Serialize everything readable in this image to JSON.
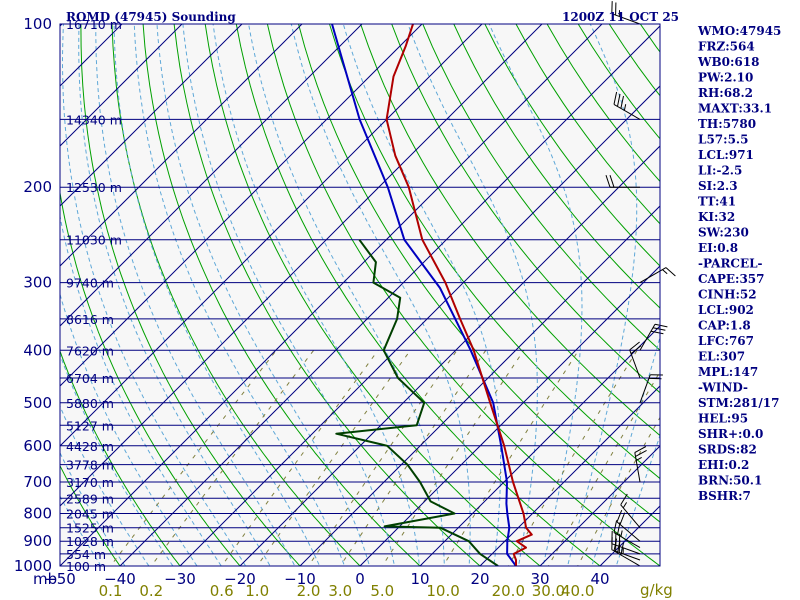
{
  "header": {
    "station": "ROMD (47945) Sounding",
    "time": "1200Z 11 OCT 25"
  },
  "indices": [
    "WMO:47945",
    "FRZ:564",
    "WB0:618",
    "PW:2.10",
    "RH:68.2",
    "MAXT:33.1",
    "TH:5780",
    "L57:5.5",
    "LCL:971",
    "LI:-2.5",
    "SI:2.3",
    "TT:41",
    "KI:32",
    "SW:230",
    "EI:0.8",
    "-PARCEL-",
    "CAPE:357",
    "CINH:52",
    "LCL:902",
    "CAP:1.8",
    "LFC:767",
    "EL:307",
    "MPL:147",
    "-WIND-",
    "STM:281/17",
    "HEL:95",
    "SHR+:0.0",
    "SRDS:82",
    "EHI:0.2",
    "BRN:50.1",
    "BSHR:7"
  ],
  "colors": {
    "axis": "#000080",
    "isotherm": "#000080",
    "dry_adiabat": "#00a000",
    "moist_adiabat": "#5fa8d8",
    "mixing_ratio": "#808040",
    "temperature": "#b00000",
    "dewpoint": "#004000",
    "parcel": "#0000c0",
    "wind": "#000000",
    "background": "#f7f7f7"
  },
  "chart_data": {
    "type": "skew-t",
    "title": "ROMD (47945) Sounding",
    "valid_time": "1200Z 11 OCT 25",
    "pressure_unit": "mb",
    "mixing_ratio_unit": "g/kg",
    "temperature_unit": "°C",
    "p_range": [
      1000,
      100
    ],
    "t_range_bottom": [
      -50,
      50
    ],
    "pressure_ticks": [
      "100",
      "200",
      "300",
      "400",
      "500",
      "600",
      "700",
      "800",
      "900",
      "1000"
    ],
    "temperature_ticks": [
      "-50",
      "-40",
      "-30",
      "-20",
      "-10",
      "0",
      "10",
      "20",
      "30",
      "40"
    ],
    "mixing_ratio_ticks": [
      {
        "w": 0.1,
        "label": "0.1"
      },
      {
        "w": 0.2,
        "label": "0.2"
      },
      {
        "w": 0.6,
        "label": "0.6"
      },
      {
        "w": 1.0,
        "label": "1.0"
      },
      {
        "w": 2.0,
        "label": "2.0"
      },
      {
        "w": 3.0,
        "label": "3.0"
      },
      {
        "w": 5.0,
        "label": "5.0"
      },
      {
        "w": 10.0,
        "label": "10.0"
      },
      {
        "w": 20.0,
        "label": "20.0"
      },
      {
        "w": 30.0,
        "label": "30.0"
      },
      {
        "w": 40.0,
        "label": "40.0"
      }
    ],
    "heights": [
      {
        "p": 100,
        "label": "16710 m"
      },
      {
        "p": 150,
        "label": "14340 m"
      },
      {
        "p": 200,
        "label": "12530 m"
      },
      {
        "p": 250,
        "label": "11030 m"
      },
      {
        "p": 300,
        "label": "9740 m"
      },
      {
        "p": 350,
        "label": "8616 m"
      },
      {
        "p": 400,
        "label": "7620 m"
      },
      {
        "p": 450,
        "label": "6704 m"
      },
      {
        "p": 500,
        "label": "5880 m"
      },
      {
        "p": 550,
        "label": "5127 m"
      },
      {
        "p": 600,
        "label": "4428 m"
      },
      {
        "p": 650,
        "label": "3778 m"
      },
      {
        "p": 700,
        "label": "3170 m"
      },
      {
        "p": 750,
        "label": "2589 m"
      },
      {
        "p": 800,
        "label": "2045 m"
      },
      {
        "p": 850,
        "label": "1525 m"
      },
      {
        "p": 900,
        "label": "1028 m"
      },
      {
        "p": 950,
        "label": "554 m"
      },
      {
        "p": 1000,
        "label": "100 m"
      }
    ],
    "temperature": [
      [
        1000,
        26.0
      ],
      [
        975,
        25.0
      ],
      [
        950,
        23.6
      ],
      [
        925,
        24.6
      ],
      [
        900,
        22.0
      ],
      [
        875,
        23.4
      ],
      [
        850,
        21.3
      ],
      [
        800,
        18.5
      ],
      [
        700,
        11.5
      ],
      [
        600,
        4.0
      ],
      [
        500,
        -5.5
      ],
      [
        400,
        -17.0
      ],
      [
        350,
        -24.5
      ],
      [
        300,
        -33.0
      ],
      [
        250,
        -44.0
      ],
      [
        200,
        -55.0
      ],
      [
        175,
        -62.5
      ],
      [
        150,
        -70.0
      ],
      [
        125,
        -76.0
      ],
      [
        110,
        -79.0
      ],
      [
        100,
        -81.5
      ]
    ],
    "dewpoint": [
      [
        1000,
        23.0
      ],
      [
        950,
        18.0
      ],
      [
        900,
        14.0
      ],
      [
        850,
        7.0
      ],
      [
        845,
        -2.5
      ],
      [
        800,
        7.0
      ],
      [
        760,
        1.0
      ],
      [
        700,
        -4.0
      ],
      [
        650,
        -9.0
      ],
      [
        600,
        -15.5
      ],
      [
        570,
        -26.0
      ],
      [
        550,
        -14.0
      ],
      [
        500,
        -16.5
      ],
      [
        450,
        -25.0
      ],
      [
        400,
        -32.0
      ],
      [
        350,
        -35.0
      ],
      [
        320,
        -38.0
      ],
      [
        300,
        -45.0
      ],
      [
        275,
        -48.0
      ],
      [
        250,
        -54.5
      ]
    ],
    "parcel": [
      [
        1000,
        26.0
      ],
      [
        950,
        22.5
      ],
      [
        902,
        20.5
      ],
      [
        850,
        18.5
      ],
      [
        800,
        15.8
      ],
      [
        767,
        14.0
      ],
      [
        700,
        10.5
      ],
      [
        600,
        3.5
      ],
      [
        500,
        -5.0
      ],
      [
        400,
        -17.5
      ],
      [
        307,
        -33.0
      ],
      [
        250,
        -47.0
      ],
      [
        200,
        -58.5
      ],
      [
        150,
        -74.5
      ],
      [
        100,
        -95.0
      ]
    ],
    "winds": [
      {
        "p": 100,
        "dir": 290,
        "spd": 25
      },
      {
        "p": 150,
        "dir": 300,
        "spd": 35
      },
      {
        "p": 200,
        "dir": 270,
        "spd": 20
      },
      {
        "p": 300,
        "dir": 60,
        "spd": 15
      },
      {
        "p": 400,
        "dir": 30,
        "spd": 30
      },
      {
        "p": 450,
        "dir": 340,
        "spd": 20
      },
      {
        "p": 500,
        "dir": 20,
        "spd": 20
      },
      {
        "p": 700,
        "dir": 350,
        "spd": 25
      },
      {
        "p": 850,
        "dir": 320,
        "spd": 15
      },
      {
        "p": 900,
        "dir": 310,
        "spd": 20
      },
      {
        "p": 925,
        "dir": 300,
        "spd": 25
      },
      {
        "p": 950,
        "dir": 290,
        "spd": 30
      },
      {
        "p": 975,
        "dir": 290,
        "spd": 35
      },
      {
        "p": 1000,
        "dir": 300,
        "spd": 30
      }
    ]
  }
}
